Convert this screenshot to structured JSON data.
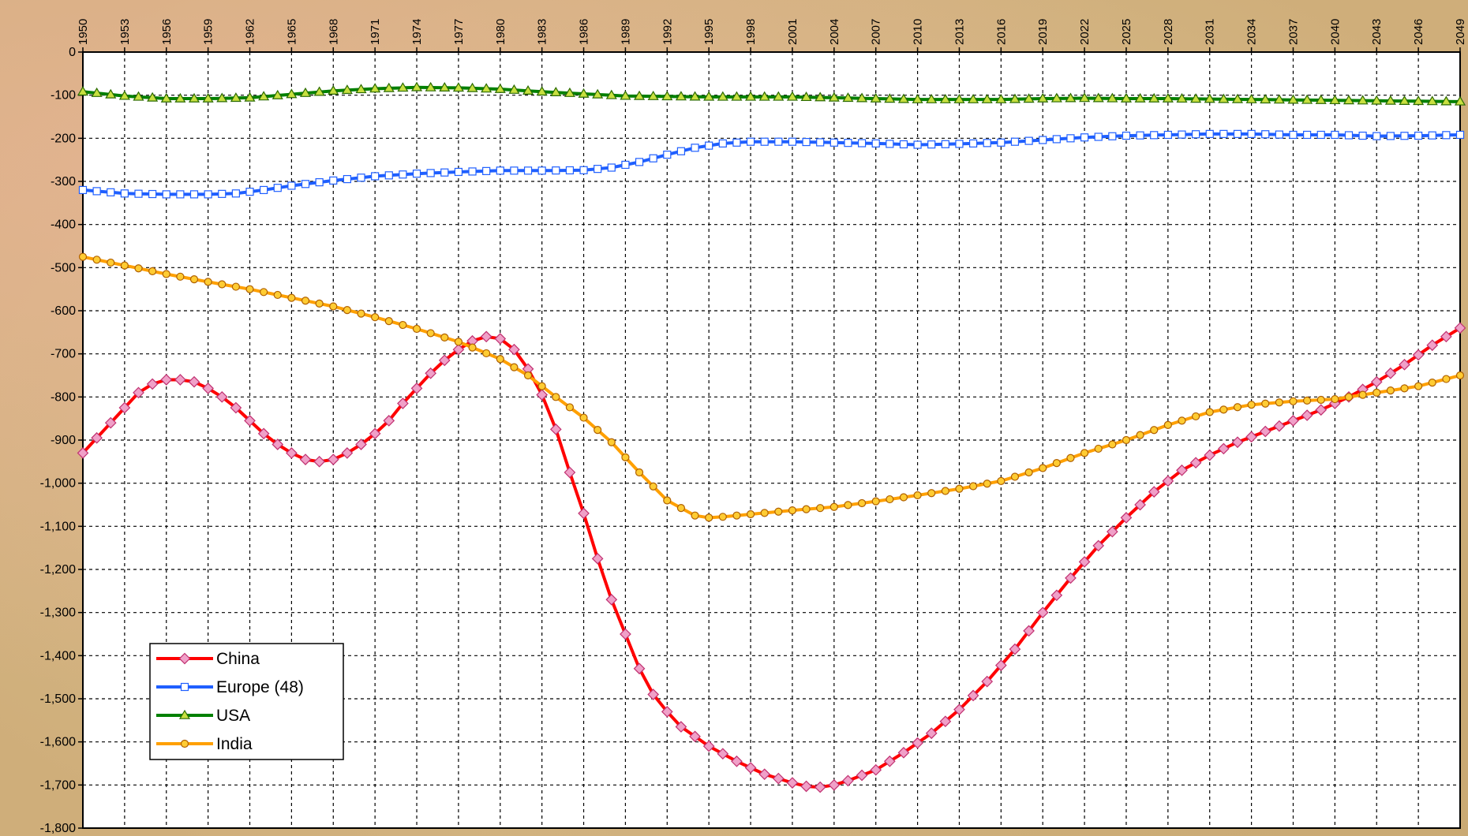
{
  "chart_data": {
    "type": "line",
    "title": "",
    "xlabel": "",
    "ylabel": "",
    "x_range": [
      1950,
      2049
    ],
    "ylim": [
      -1800,
      0
    ],
    "y_ticks": [
      0,
      -100,
      -200,
      -300,
      -400,
      -500,
      -600,
      -700,
      -800,
      -900,
      -1000,
      -1100,
      -1200,
      -1300,
      -1400,
      -1500,
      -1600,
      -1700,
      -1800
    ],
    "y_tick_labels": [
      "0",
      "-100",
      "-200",
      "-300",
      "-400",
      "-500",
      "-600",
      "-700",
      "-800",
      "-900",
      "-1,000",
      "-1,100",
      "-1,200",
      "-1,300",
      "-1,400",
      "-1,500",
      "-1,600",
      "-1,700",
      "-1,800"
    ],
    "x_tick_labels": [
      "1950",
      "1953",
      "1956",
      "1959",
      "1962",
      "1965",
      "1968",
      "1971",
      "1974",
      "1977",
      "1980",
      "1983",
      "1986",
      "1989",
      "1992",
      "1995",
      "1998",
      "2001",
      "2004",
      "2007",
      "2010",
      "2013",
      "2016",
      "2019",
      "2022",
      "2025",
      "2028",
      "2031",
      "2034",
      "2037",
      "2040",
      "2043",
      "2046",
      "2049"
    ],
    "grid": true,
    "legend_position": "bottom-left",
    "series": [
      {
        "name": "China",
        "line_color": "#ff0000",
        "marker": "diamond",
        "marker_fill": "#f0a0c8",
        "marker_stroke": "#c03070",
        "points": [
          [
            1950,
            -930
          ],
          [
            1952,
            -860
          ],
          [
            1954,
            -790
          ],
          [
            1955,
            -770
          ],
          [
            1956,
            -760
          ],
          [
            1957,
            -760
          ],
          [
            1958,
            -765
          ],
          [
            1959,
            -780
          ],
          [
            1960,
            -800
          ],
          [
            1961,
            -825
          ],
          [
            1962,
            -855
          ],
          [
            1963,
            -885
          ],
          [
            1964,
            -910
          ],
          [
            1965,
            -930
          ],
          [
            1966,
            -945
          ],
          [
            1967,
            -950
          ],
          [
            1968,
            -945
          ],
          [
            1969,
            -930
          ],
          [
            1970,
            -910
          ],
          [
            1971,
            -885
          ],
          [
            1972,
            -855
          ],
          [
            1973,
            -815
          ],
          [
            1974,
            -780
          ],
          [
            1975,
            -745
          ],
          [
            1976,
            -715
          ],
          [
            1977,
            -690
          ],
          [
            1978,
            -670
          ],
          [
            1979,
            -660
          ],
          [
            1980,
            -665
          ],
          [
            1981,
            -690
          ],
          [
            1982,
            -735
          ],
          [
            1983,
            -795
          ],
          [
            1984,
            -875
          ],
          [
            1985,
            -975
          ],
          [
            1986,
            -1070
          ],
          [
            1987,
            -1175
          ],
          [
            1988,
            -1270
          ],
          [
            1989,
            -1350
          ],
          [
            1990,
            -1430
          ],
          [
            1991,
            -1490
          ],
          [
            1992,
            -1530
          ],
          [
            1993,
            -1565
          ],
          [
            1995,
            -1610
          ],
          [
            1997,
            -1645
          ],
          [
            1999,
            -1675
          ],
          [
            2001,
            -1695
          ],
          [
            2002,
            -1703
          ],
          [
            2003,
            -1705
          ],
          [
            2004,
            -1700
          ],
          [
            2005,
            -1690
          ],
          [
            2007,
            -1665
          ],
          [
            2009,
            -1625
          ],
          [
            2011,
            -1580
          ],
          [
            2013,
            -1525
          ],
          [
            2015,
            -1460
          ],
          [
            2017,
            -1385
          ],
          [
            2019,
            -1300
          ],
          [
            2021,
            -1220
          ],
          [
            2023,
            -1145
          ],
          [
            2025,
            -1080
          ],
          [
            2027,
            -1020
          ],
          [
            2029,
            -970
          ],
          [
            2031,
            -935
          ],
          [
            2033,
            -905
          ],
          [
            2035,
            -880
          ],
          [
            2037,
            -855
          ],
          [
            2039,
            -830
          ],
          [
            2041,
            -800
          ],
          [
            2043,
            -765
          ],
          [
            2045,
            -725
          ],
          [
            2047,
            -680
          ],
          [
            2049,
            -640
          ]
        ]
      },
      {
        "name": "Europe (48)",
        "line_color": "#1f5fff",
        "marker": "square",
        "marker_fill": "#ffffff",
        "marker_stroke": "#1f5fff",
        "points": [
          [
            1950,
            -320
          ],
          [
            1953,
            -328
          ],
          [
            1956,
            -330
          ],
          [
            1959,
            -330
          ],
          [
            1961,
            -328
          ],
          [
            1963,
            -320
          ],
          [
            1965,
            -310
          ],
          [
            1968,
            -298
          ],
          [
            1971,
            -288
          ],
          [
            1974,
            -282
          ],
          [
            1977,
            -278
          ],
          [
            1980,
            -275
          ],
          [
            1983,
            -275
          ],
          [
            1986,
            -274
          ],
          [
            1988,
            -268
          ],
          [
            1990,
            -255
          ],
          [
            1992,
            -238
          ],
          [
            1994,
            -222
          ],
          [
            1996,
            -212
          ],
          [
            1998,
            -208
          ],
          [
            2001,
            -208
          ],
          [
            2004,
            -210
          ],
          [
            2007,
            -212
          ],
          [
            2010,
            -215
          ],
          [
            2013,
            -213
          ],
          [
            2016,
            -210
          ],
          [
            2019,
            -204
          ],
          [
            2022,
            -198
          ],
          [
            2025,
            -194
          ],
          [
            2028,
            -192
          ],
          [
            2031,
            -190
          ],
          [
            2034,
            -190
          ],
          [
            2037,
            -192
          ],
          [
            2040,
            -192
          ],
          [
            2043,
            -195
          ],
          [
            2046,
            -194
          ],
          [
            2049,
            -192
          ]
        ]
      },
      {
        "name": "USA",
        "line_color": "#008000",
        "marker": "triangle",
        "marker_fill": "#c8e040",
        "marker_stroke": "#2a6a00",
        "points": [
          [
            1950,
            -92
          ],
          [
            1953,
            -102
          ],
          [
            1956,
            -108
          ],
          [
            1959,
            -108
          ],
          [
            1962,
            -106
          ],
          [
            1965,
            -98
          ],
          [
            1968,
            -90
          ],
          [
            1971,
            -85
          ],
          [
            1974,
            -82
          ],
          [
            1977,
            -83
          ],
          [
            1980,
            -86
          ],
          [
            1983,
            -92
          ],
          [
            1986,
            -97
          ],
          [
            1989,
            -102
          ],
          [
            1992,
            -103
          ],
          [
            1995,
            -104
          ],
          [
            1998,
            -104
          ],
          [
            2001,
            -104
          ],
          [
            2004,
            -106
          ],
          [
            2007,
            -108
          ],
          [
            2010,
            -110
          ],
          [
            2013,
            -110
          ],
          [
            2016,
            -110
          ],
          [
            2019,
            -108
          ],
          [
            2022,
            -107
          ],
          [
            2025,
            -108
          ],
          [
            2028,
            -108
          ],
          [
            2031,
            -109
          ],
          [
            2034,
            -110
          ],
          [
            2037,
            -111
          ],
          [
            2040,
            -112
          ],
          [
            2043,
            -113
          ],
          [
            2046,
            -114
          ],
          [
            2049,
            -115
          ]
        ]
      },
      {
        "name": "India",
        "line_color": "#ffa000",
        "marker": "circle",
        "marker_fill": "#ffcc33",
        "marker_stroke": "#b06000",
        "points": [
          [
            1950,
            -475
          ],
          [
            1953,
            -495
          ],
          [
            1956,
            -515
          ],
          [
            1959,
            -533
          ],
          [
            1962,
            -550
          ],
          [
            1965,
            -570
          ],
          [
            1968,
            -590
          ],
          [
            1971,
            -615
          ],
          [
            1974,
            -642
          ],
          [
            1977,
            -672
          ],
          [
            1980,
            -712
          ],
          [
            1982,
            -750
          ],
          [
            1984,
            -800
          ],
          [
            1986,
            -848
          ],
          [
            1988,
            -905
          ],
          [
            1990,
            -975
          ],
          [
            1992,
            -1040
          ],
          [
            1994,
            -1075
          ],
          [
            1995,
            -1080
          ],
          [
            1996,
            -1078
          ],
          [
            1998,
            -1072
          ],
          [
            2001,
            -1063
          ],
          [
            2004,
            -1055
          ],
          [
            2007,
            -1042
          ],
          [
            2010,
            -1028
          ],
          [
            2013,
            -1013
          ],
          [
            2016,
            -995
          ],
          [
            2019,
            -965
          ],
          [
            2022,
            -930
          ],
          [
            2025,
            -900
          ],
          [
            2028,
            -865
          ],
          [
            2031,
            -835
          ],
          [
            2034,
            -818
          ],
          [
            2037,
            -810
          ],
          [
            2040,
            -805
          ],
          [
            2043,
            -790
          ],
          [
            2046,
            -775
          ],
          [
            2049,
            -750
          ]
        ]
      }
    ]
  }
}
